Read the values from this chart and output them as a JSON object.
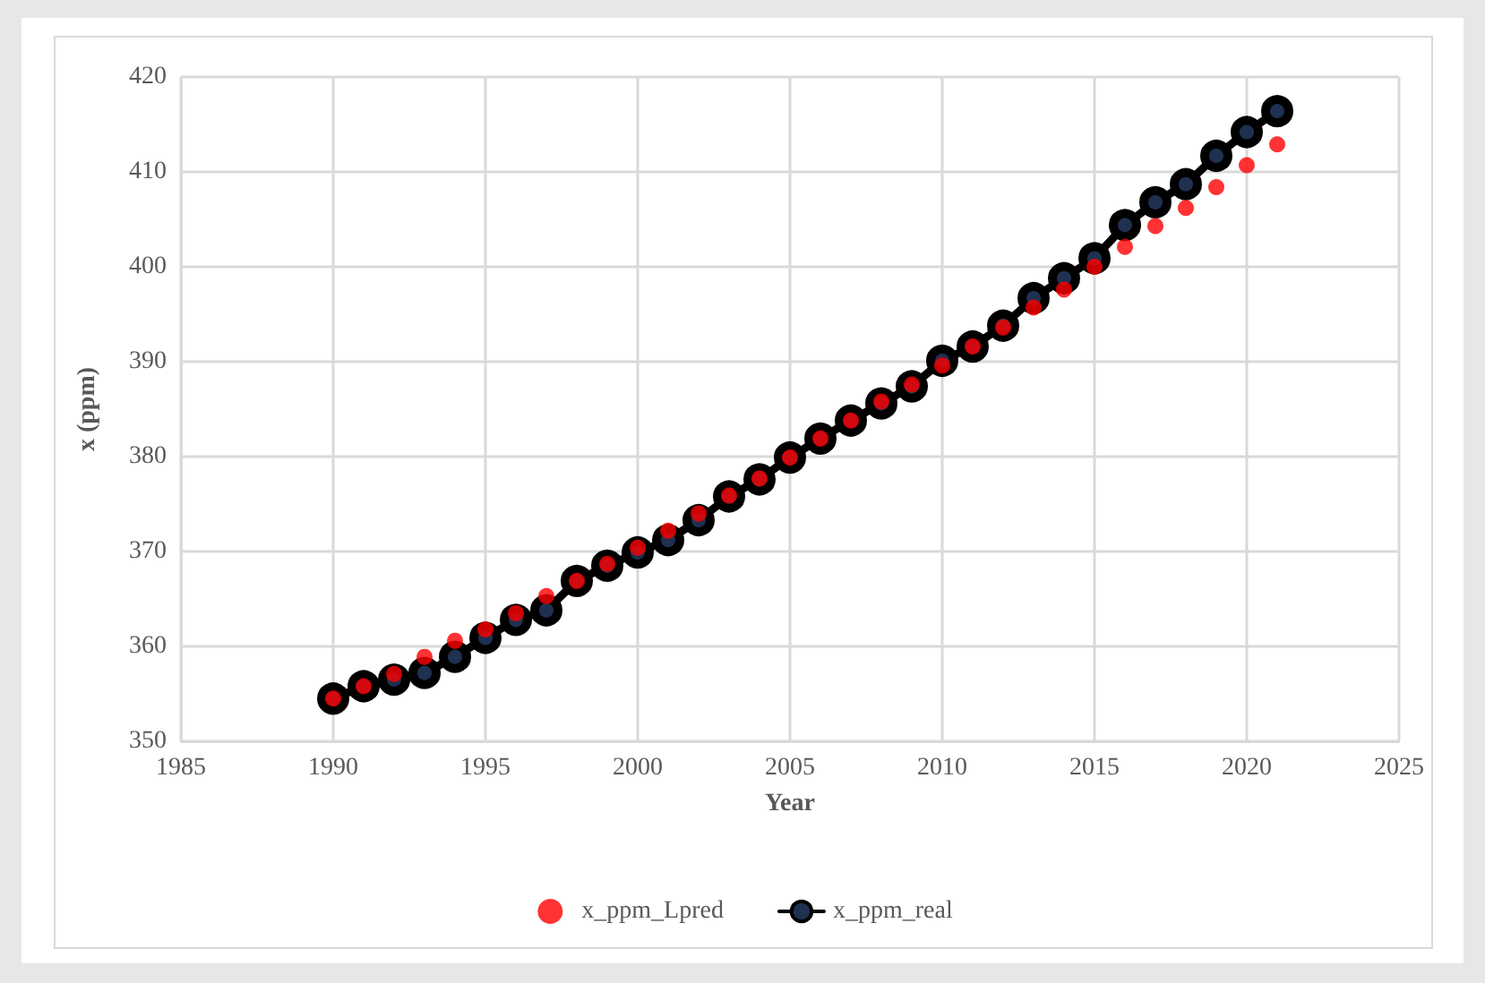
{
  "chart_data": {
    "type": "line",
    "xlabel": "Year",
    "ylabel": "x (ppm)",
    "x": [
      1990,
      1991,
      1992,
      1993,
      1994,
      1995,
      1996,
      1997,
      1998,
      1999,
      2000,
      2001,
      2002,
      2003,
      2004,
      2005,
      2006,
      2007,
      2008,
      2009,
      2010,
      2011,
      2012,
      2013,
      2014,
      2015,
      2016,
      2017,
      2018,
      2019,
      2020,
      2021
    ],
    "series": [
      {
        "name": "x_ppm_Lpred",
        "type": "scatter",
        "color": "#ff0000",
        "values": [
          354.5,
          355.8,
          357.1,
          358.9,
          360.6,
          361.8,
          363.5,
          365.3,
          366.9,
          368.7,
          370.4,
          372.2,
          374.0,
          375.9,
          377.7,
          379.9,
          381.9,
          383.8,
          385.8,
          387.6,
          389.6,
          391.6,
          393.6,
          395.7,
          397.6,
          400.0,
          402.1,
          404.3,
          406.2,
          408.4,
          410.7,
          412.9
        ]
      },
      {
        "name": "x_ppm_real",
        "color": "#000000",
        "values": [
          354.5,
          355.8,
          356.5,
          357.2,
          358.9,
          360.9,
          362.8,
          363.8,
          366.9,
          368.5,
          369.9,
          371.2,
          373.3,
          375.8,
          377.6,
          379.9,
          381.9,
          383.8,
          385.6,
          387.4,
          390.1,
          391.6,
          393.8,
          396.7,
          398.8,
          400.9,
          404.4,
          406.8,
          408.7,
          411.7,
          414.2,
          416.4
        ]
      }
    ],
    "xlim": [
      1985,
      2025
    ],
    "xticks": [
      1985,
      1990,
      1995,
      2000,
      2005,
      2010,
      2015,
      2020,
      2025
    ],
    "ylim": [
      350,
      420
    ],
    "yticks": [
      350,
      360,
      370,
      380,
      390,
      400,
      410,
      420
    ],
    "grid": true,
    "legend": "bottom",
    "marker": "circle",
    "line_style": "solid"
  }
}
